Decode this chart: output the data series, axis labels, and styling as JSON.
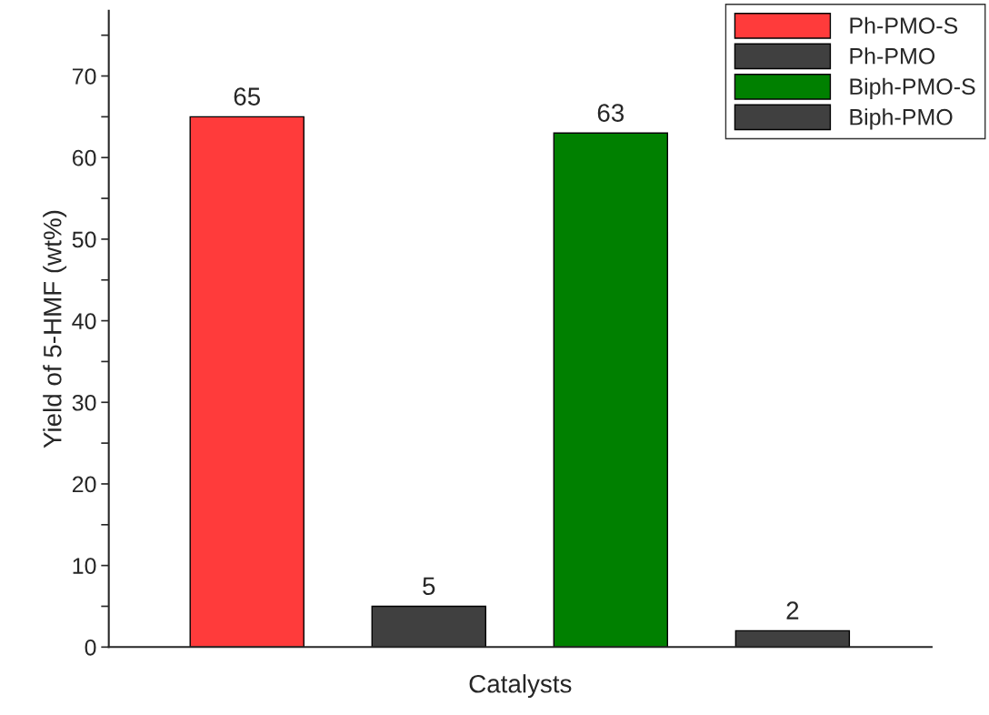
{
  "chart_data": {
    "type": "bar",
    "xlabel": "Catalysts",
    "ylabel": "Yield of 5-HMF (wt%)",
    "categories": [
      null,
      null,
      null,
      null
    ],
    "series": [
      {
        "name": "Ph-PMO-S",
        "color": "#ff3b3b",
        "values": [
          65,
          null,
          null,
          null
        ]
      },
      {
        "name": "Ph-PMO",
        "color": "#404040",
        "values": [
          null,
          5,
          null,
          null
        ]
      },
      {
        "name": "Biph-PMO-S",
        "color": "#008000",
        "values": [
          null,
          null,
          63,
          null
        ]
      },
      {
        "name": "Biph-PMO",
        "color": "#404040",
        "values": [
          null,
          null,
          null,
          2
        ]
      }
    ],
    "ylim": [
      0,
      78
    ],
    "yticks": [
      0,
      {
        "value": 5,
        "label": null
      },
      10,
      {
        "value": 15,
        "label": null
      },
      20,
      {
        "value": 25,
        "label": null
      },
      30,
      {
        "value": 35,
        "label": null
      },
      40,
      {
        "value": 45,
        "label": null
      },
      50,
      {
        "value": 55,
        "label": null
      },
      60,
      {
        "value": 65,
        "label": null
      },
      70,
      {
        "value": 75,
        "label": null
      }
    ],
    "data_labels": true,
    "grid": false,
    "legend": "top right"
  }
}
